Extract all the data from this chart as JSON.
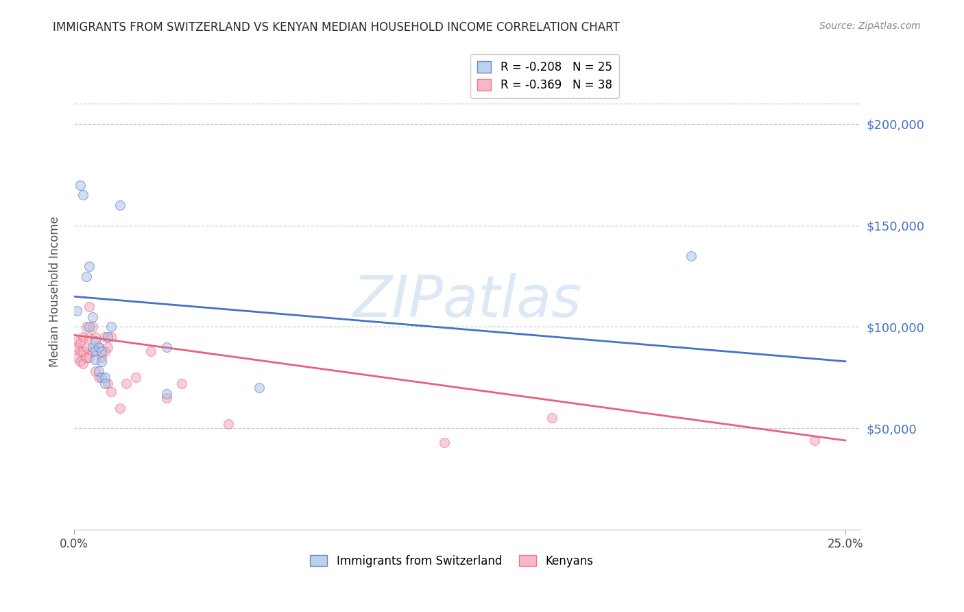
{
  "title": "IMMIGRANTS FROM SWITZERLAND VS KENYAN MEDIAN HOUSEHOLD INCOME CORRELATION CHART",
  "source": "Source: ZipAtlas.com",
  "ylabel_label": "Median Household Income",
  "ytick_labels": [
    "$50,000",
    "$100,000",
    "$150,000",
    "$200,000"
  ],
  "ytick_values": [
    50000,
    100000,
    150000,
    200000
  ],
  "legend_entries": [
    {
      "label": "R = -0.208   N = 25",
      "color": "#aec6e8",
      "edge": "#4472c4"
    },
    {
      "label": "R = -0.369   N = 38",
      "color": "#f4a7b9",
      "edge": "#e8607a"
    }
  ],
  "legend_bottom": [
    {
      "label": "Immigrants from Switzerland",
      "color": "#aec6e8",
      "edge": "#4472c4"
    },
    {
      "label": "Kenyans",
      "color": "#f4a7b9",
      "edge": "#e8607a"
    }
  ],
  "blue_scatter_x": [
    0.001,
    0.002,
    0.003,
    0.004,
    0.005,
    0.005,
    0.006,
    0.006,
    0.007,
    0.007,
    0.007,
    0.008,
    0.008,
    0.009,
    0.009,
    0.009,
    0.01,
    0.01,
    0.011,
    0.012,
    0.03,
    0.06,
    0.2,
    0.03,
    0.015
  ],
  "blue_scatter_y": [
    108000,
    170000,
    165000,
    125000,
    130000,
    100000,
    105000,
    90000,
    93000,
    88000,
    84000,
    90000,
    78000,
    88000,
    83000,
    75000,
    75000,
    72000,
    95000,
    100000,
    90000,
    70000,
    135000,
    67000,
    160000
  ],
  "pink_scatter_x": [
    0.001,
    0.001,
    0.001,
    0.002,
    0.002,
    0.002,
    0.003,
    0.003,
    0.003,
    0.004,
    0.004,
    0.004,
    0.005,
    0.005,
    0.005,
    0.006,
    0.006,
    0.007,
    0.007,
    0.008,
    0.008,
    0.009,
    0.01,
    0.01,
    0.011,
    0.011,
    0.012,
    0.012,
    0.015,
    0.017,
    0.02,
    0.025,
    0.03,
    0.035,
    0.05,
    0.12,
    0.155,
    0.24
  ],
  "pink_scatter_y": [
    93000,
    90000,
    85000,
    92000,
    88000,
    83000,
    95000,
    88000,
    82000,
    100000,
    90000,
    85000,
    110000,
    95000,
    85000,
    100000,
    88000,
    95000,
    78000,
    90000,
    75000,
    85000,
    95000,
    88000,
    90000,
    72000,
    95000,
    68000,
    60000,
    72000,
    75000,
    88000,
    65000,
    72000,
    52000,
    43000,
    55000,
    44000
  ],
  "blue_line_x": [
    0.0,
    0.25
  ],
  "blue_line_y": [
    115000,
    83000
  ],
  "pink_line_x": [
    0.0,
    0.25
  ],
  "pink_line_y": [
    96000,
    44000
  ],
  "xlim": [
    0.0,
    0.255
  ],
  "ylim": [
    0,
    235000
  ],
  "ytop_line": 210000,
  "scatter_size": 100,
  "scatter_alpha": 0.55,
  "bg_color": "#ffffff",
  "grid_color": "#cccccc",
  "title_color": "#2a2a2a",
  "ytick_color": "#4472c4",
  "source_color": "#888888",
  "watermark": "ZIPatlas",
  "watermark_color": "#dce8f5",
  "blue_line_color": "#4472c4",
  "pink_line_color": "#e8607a"
}
